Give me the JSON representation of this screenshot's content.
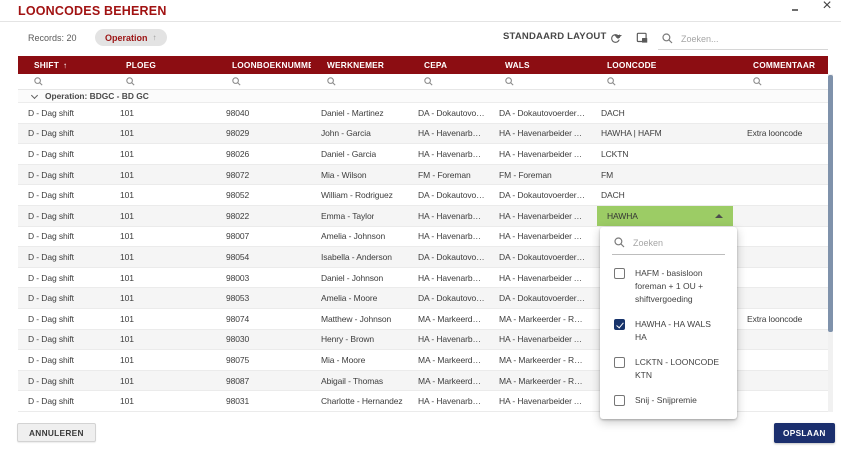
{
  "window": {
    "title": "LOONCODES BEHEREN"
  },
  "toolbar": {
    "records_label": "Records: 20",
    "group_chip": {
      "label": "Operation",
      "arrow": "↑"
    },
    "layout_label": "STANDAARD LAYOUT",
    "search_placeholder": "Zoeken..."
  },
  "table": {
    "columns": [
      {
        "key": "shift",
        "label": "SHIFT",
        "sort": "↑"
      },
      {
        "key": "ploeg",
        "label": "PLOEG",
        "sort": ""
      },
      {
        "key": "nummer",
        "label": "LOONBOEKNUMMER",
        "sort": ""
      },
      {
        "key": "werknemer",
        "label": "WERKNEMER",
        "sort": ""
      },
      {
        "key": "cepa",
        "label": "CEPA",
        "sort": ""
      },
      {
        "key": "wals",
        "label": "WALS",
        "sort": ""
      },
      {
        "key": "looncode",
        "label": "LOONCODE",
        "sort": ""
      },
      {
        "key": "commentaar",
        "label": "COMMENTAAR",
        "sort": ""
      }
    ],
    "group_row_label": "Operation: BDGC - BD GC",
    "rows": [
      {
        "shift": "D - Dag shift",
        "ploeg": "101",
        "nummer": "98040",
        "werknemer": "Daniel - Martinez",
        "cepa": "DA - Dokautovoerder - Ra...",
        "wals": "DA - Dokautovoerder - Ra...",
        "looncode": "DACH",
        "commentaar": "",
        "editing": false
      },
      {
        "shift": "D - Dag shift",
        "ploeg": "101",
        "nummer": "98029",
        "werknemer": "John - Garcia",
        "cepa": "HA - Havenarbeider Alge...",
        "wals": "HA - Havenarbeider Alge...",
        "looncode": "HAWHA | HAFM",
        "commentaar": "Extra looncode",
        "editing": false
      },
      {
        "shift": "D - Dag shift",
        "ploeg": "101",
        "nummer": "98026",
        "werknemer": "Daniel - Garcia",
        "cepa": "HA - Havenarbeider Alge...",
        "wals": "HA - Havenarbeider Alge...",
        "looncode": "LCKTN",
        "commentaar": "",
        "editing": false
      },
      {
        "shift": "D - Dag shift",
        "ploeg": "101",
        "nummer": "98072",
        "werknemer": "Mia - Wilson",
        "cepa": "FM - Foreman",
        "wals": "FM - Foreman",
        "looncode": "FM",
        "commentaar": "",
        "editing": false
      },
      {
        "shift": "D - Dag shift",
        "ploeg": "101",
        "nummer": "98052",
        "werknemer": "William - Rodriguez",
        "cepa": "DA - Dokautovoerder - Ra...",
        "wals": "DA - Dokautovoerder - Ra...",
        "looncode": "DACH",
        "commentaar": "",
        "editing": false
      },
      {
        "shift": "D - Dag shift",
        "ploeg": "101",
        "nummer": "98022",
        "werknemer": "Emma - Taylor",
        "cepa": "HA - Havenarbeider Alge...",
        "wals": "HA - Havenarbeider Alge...",
        "looncode": "HAWHA",
        "commentaar": "",
        "editing": true
      },
      {
        "shift": "D - Dag shift",
        "ploeg": "101",
        "nummer": "98007",
        "werknemer": "Amelia - Johnson",
        "cepa": "HA - Havenarbeider Alge...",
        "wals": "HA - Havenarbeider Alge...",
        "looncode": "",
        "commentaar": "",
        "editing": false
      },
      {
        "shift": "D - Dag shift",
        "ploeg": "101",
        "nummer": "98054",
        "werknemer": "Isabella - Anderson",
        "cepa": "DA - Dokautovoerder - Ra...",
        "wals": "DA - Dokautovoerder - Ra...",
        "looncode": "",
        "commentaar": "",
        "editing": false
      },
      {
        "shift": "D - Dag shift",
        "ploeg": "101",
        "nummer": "98003",
        "werknemer": "Daniel - Johnson",
        "cepa": "HA - Havenarbeider Alge...",
        "wals": "HA - Havenarbeider Alge...",
        "looncode": "",
        "commentaar": "",
        "editing": false
      },
      {
        "shift": "D - Dag shift",
        "ploeg": "101",
        "nummer": "98053",
        "werknemer": "Amelia - Moore",
        "cepa": "DA - Dokautovoerder - Ra...",
        "wals": "DA - Dokautovoerder - Ra...",
        "looncode": "",
        "commentaar": "",
        "editing": false
      },
      {
        "shift": "D - Dag shift",
        "ploeg": "101",
        "nummer": "98074",
        "werknemer": "Matthew - Johnson",
        "cepa": "MA - Markeerder - Rang A",
        "wals": "MA - Markeerder - Rang A",
        "looncode": "",
        "commentaar": "Extra looncode",
        "editing": false
      },
      {
        "shift": "D - Dag shift",
        "ploeg": "101",
        "nummer": "98030",
        "werknemer": "Henry - Brown",
        "cepa": "HA - Havenarbeider Alge...",
        "wals": "HA - Havenarbeider Alge...",
        "looncode": "",
        "commentaar": "",
        "editing": false
      },
      {
        "shift": "D - Dag shift",
        "ploeg": "101",
        "nummer": "98075",
        "werknemer": "Mia - Moore",
        "cepa": "MA - Markeerder - Rang A",
        "wals": "MA - Markeerder - Rang A",
        "looncode": "",
        "commentaar": "",
        "editing": false
      },
      {
        "shift": "D - Dag shift",
        "ploeg": "101",
        "nummer": "98087",
        "werknemer": "Abigail - Thomas",
        "cepa": "MA - Markeerder - Rang A",
        "wals": "MA - Markeerder - Rang A",
        "looncode": "",
        "commentaar": "",
        "editing": false
      },
      {
        "shift": "D - Dag shift",
        "ploeg": "101",
        "nummer": "98031",
        "werknemer": "Charlotte - Hernandez",
        "cepa": "HA - Havenarbeider Alge...",
        "wals": "HA - Havenarbeider Alge...",
        "looncode": "",
        "commentaar": "",
        "editing": false
      }
    ]
  },
  "editor": {
    "value": "HAWHA"
  },
  "dropdown": {
    "search_placeholder": "Zoeken",
    "options": [
      {
        "label": "HAFM - basisloon foreman + 1 OU + shiftvergoeding",
        "checked": false
      },
      {
        "label": "HAWHA - HA WALS HA",
        "checked": true
      },
      {
        "label": "LCKTN - LOONCODE KTN",
        "checked": false
      },
      {
        "label": "Snij - Snijpremie",
        "checked": false
      }
    ]
  },
  "footer": {
    "cancel_label": "ANNULEREN",
    "save_label": "OPSLAAN"
  },
  "colors": {
    "header_bg": "#8c0d12",
    "title_red": "#a11212",
    "editor_green": "#9ccc65",
    "save_button_bg": "#1b2f6e",
    "checkbox_checked": "#17336b",
    "scrollbar_thumb": "#7f92ab"
  }
}
